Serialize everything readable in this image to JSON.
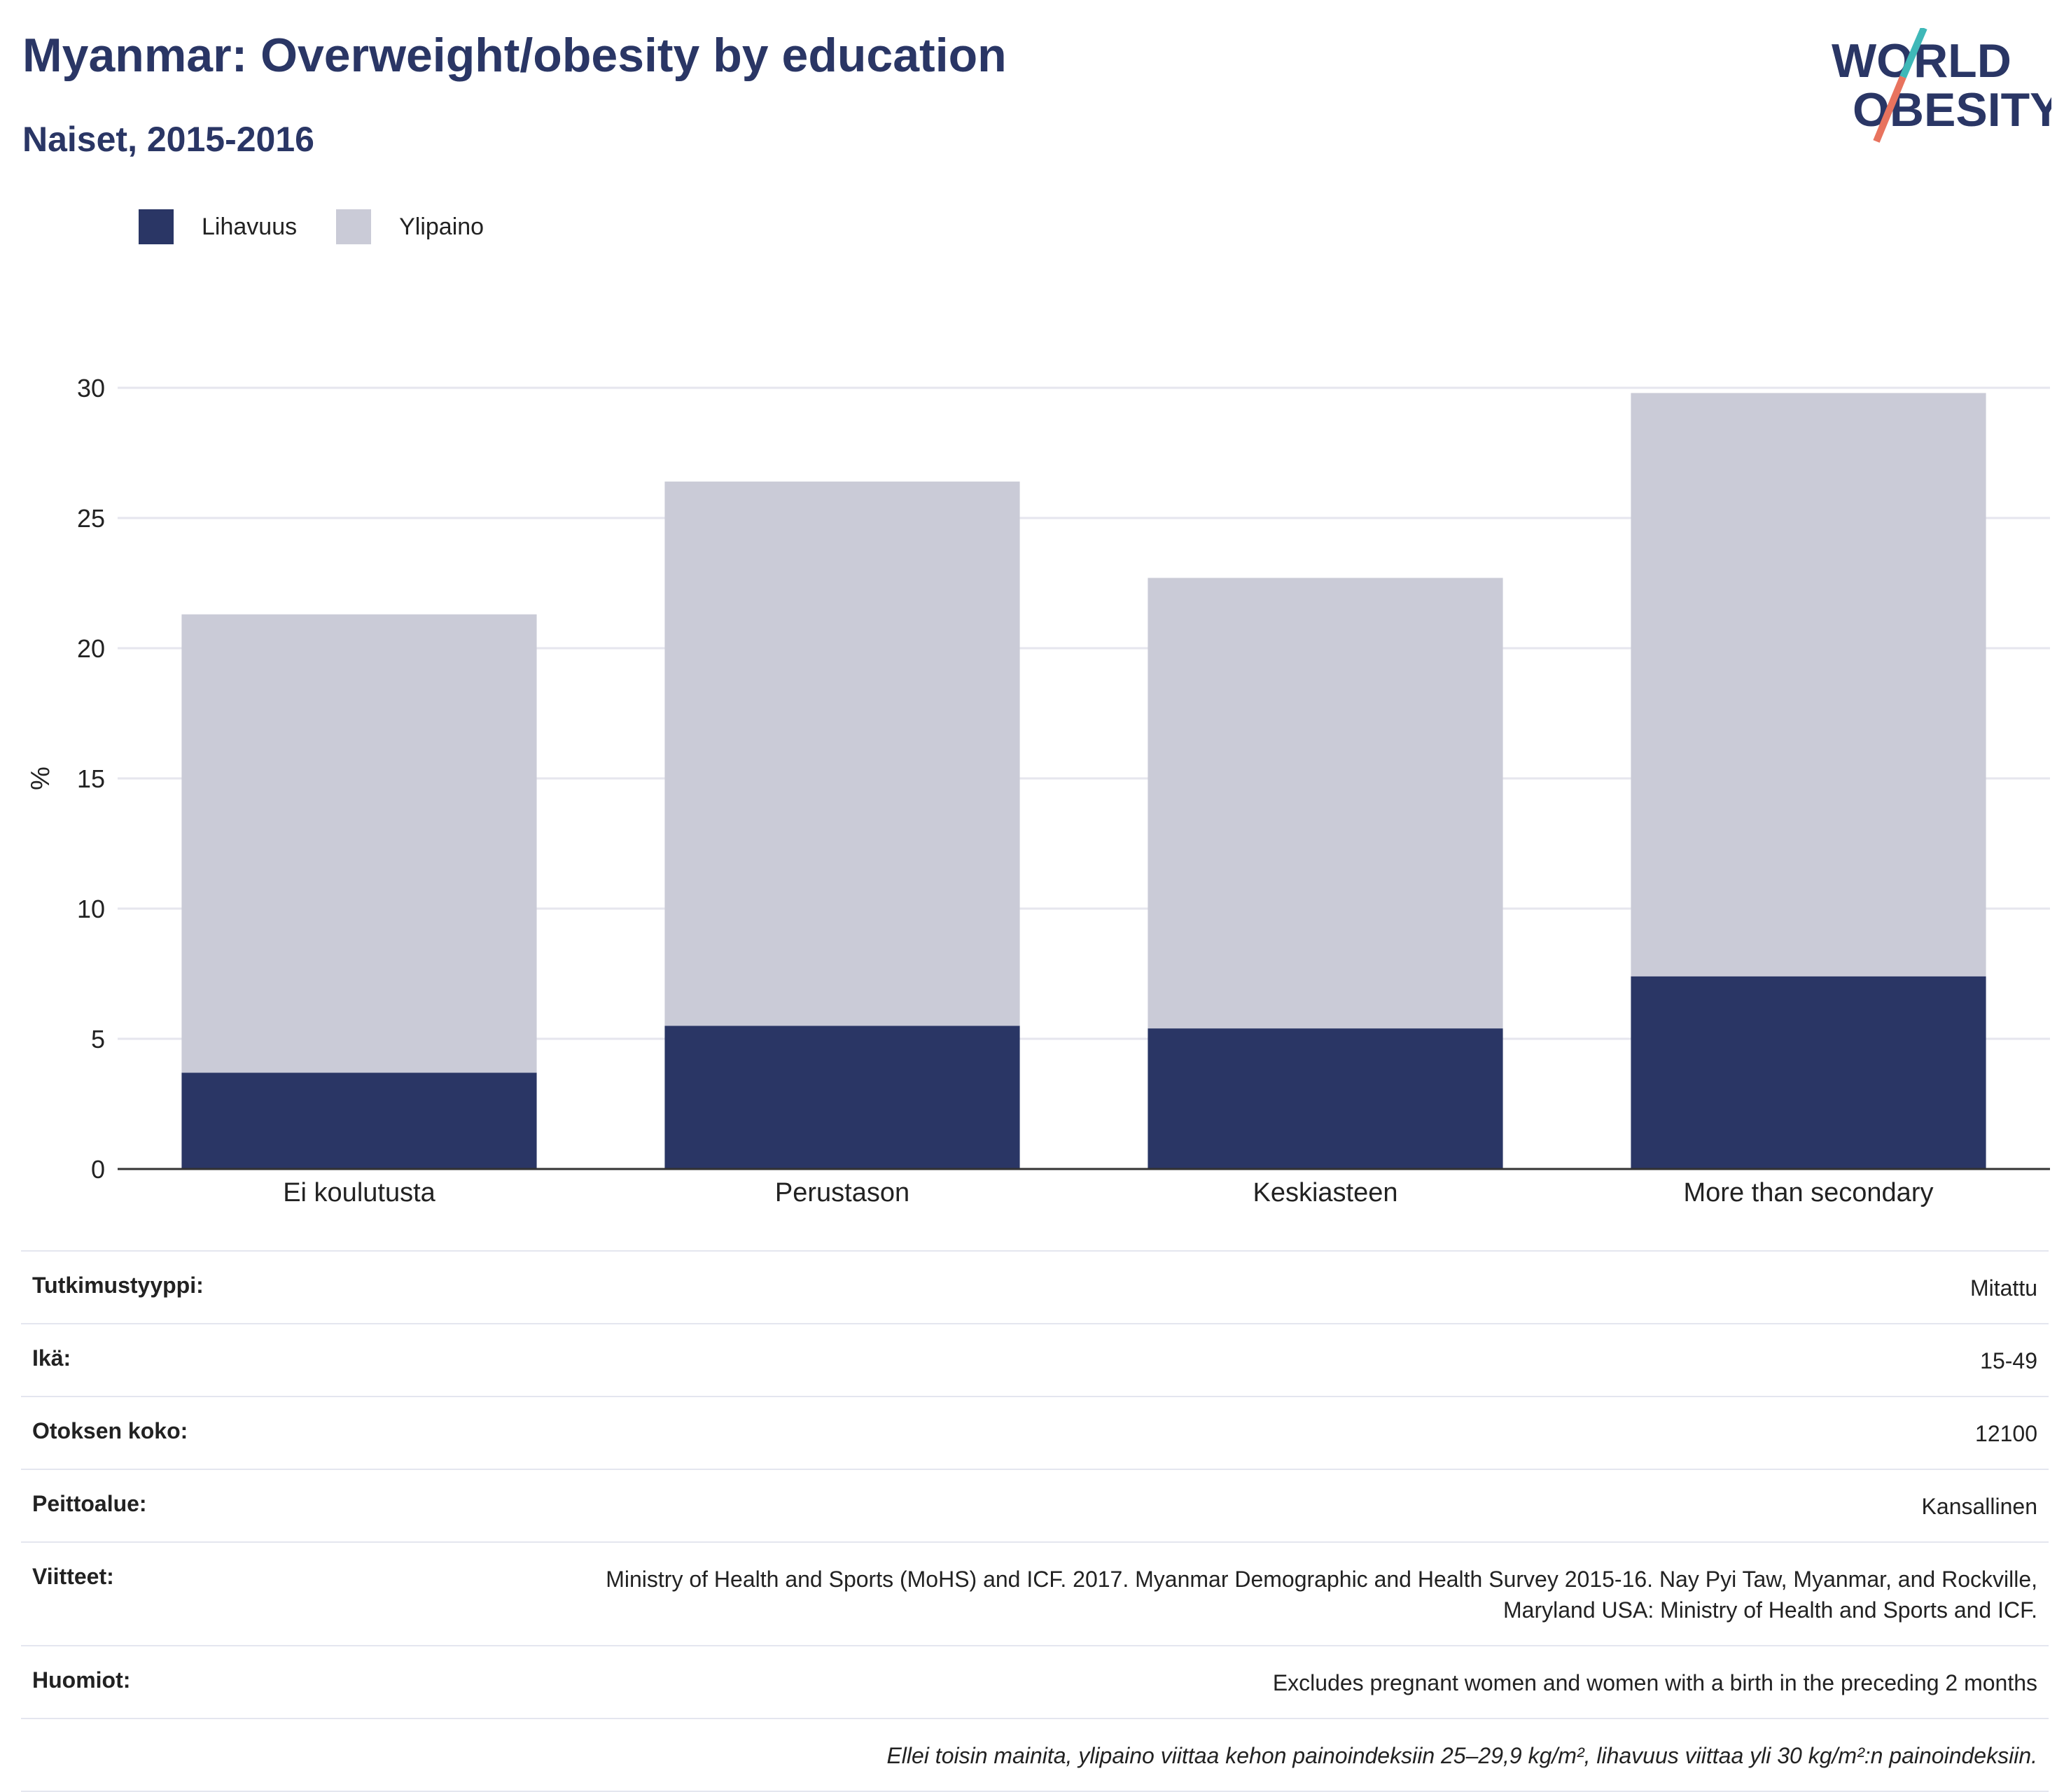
{
  "header": {
    "title": "Myanmar: Overweight/obesity by education",
    "subtitle": "Naiset, 2015-2016"
  },
  "logo": {
    "line1": "WORLD",
    "line2": "OBESITY",
    "accent_teal": "#3fb8b8",
    "accent_coral": "#e8735e"
  },
  "colors": {
    "obesity": "#2a3665",
    "overweight": "#cacbd7",
    "grid": "#e6e6ee",
    "axis": "#333333"
  },
  "chart_data": {
    "type": "bar",
    "stacked": true,
    "categories": [
      "Ei koulutusta",
      "Perustason",
      "Keskiasteen",
      "More than secondary"
    ],
    "series": [
      {
        "name": "Lihavuus",
        "values": [
          3.7,
          5.5,
          5.4,
          7.4
        ]
      },
      {
        "name": "Ylipaino",
        "values": [
          17.6,
          20.9,
          17.3,
          22.4
        ]
      }
    ],
    "ylabel": "%",
    "ylim": [
      0,
      30
    ],
    "yticks": [
      0,
      5,
      10,
      15,
      20,
      25,
      30
    ],
    "grid": true,
    "legend": "top-left"
  },
  "info": [
    {
      "label": "Tutkimustyyppi:",
      "value": "Mitattu"
    },
    {
      "label": "Ikä:",
      "value": "15-49"
    },
    {
      "label": "Otoksen koko:",
      "value": "12100"
    },
    {
      "label": "Peittoalue:",
      "value": "Kansallinen"
    },
    {
      "label": "Viitteet:",
      "value": "Ministry of Health and Sports (MoHS) and ICF. 2017. Myanmar Demographic and Health Survey 2015-16. Nay Pyi Taw, Myanmar, and Rockville, Maryland USA: Ministry of Health and Sports and ICF."
    },
    {
      "label": "Huomiot:",
      "value": "Excludes pregnant women and women with a birth in the preceding 2 months"
    }
  ],
  "footnote": "Ellei toisin mainita, ylipaino viittaa kehon painoindeksiin 25–29,9 kg/m², lihavuus viittaa yli 30 kg/m²:n painoindeksiin."
}
